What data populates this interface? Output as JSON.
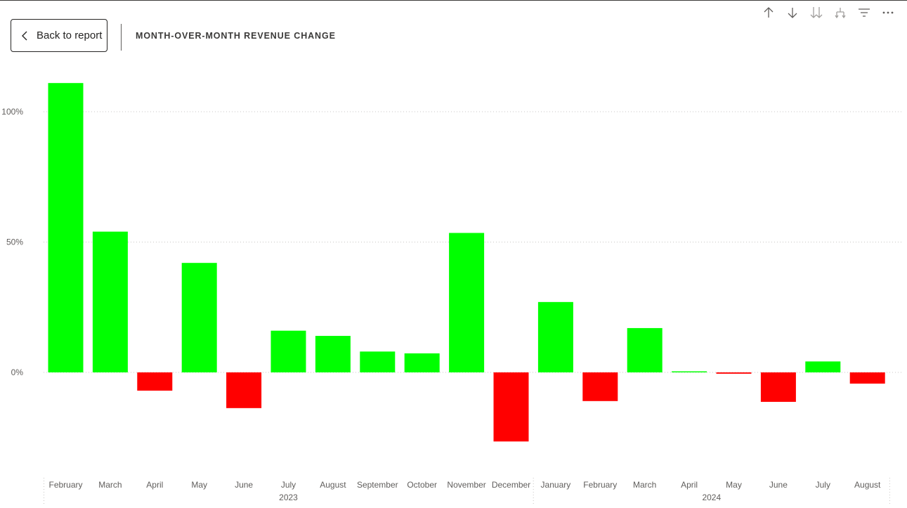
{
  "header": {
    "back_label": "Back to report",
    "title": "MONTH-OVER-MONTH REVENUE CHANGE"
  },
  "toolbar": {
    "icons": [
      "arrow-up-icon",
      "arrow-down-icon",
      "double-arrow-down-icon",
      "expand-hierarchy-icon",
      "filter-icon",
      "more-options-icon"
    ]
  },
  "colors": {
    "positive": "#00ff00",
    "negative": "#ff0000",
    "text": "#605e5c"
  },
  "chart_data": {
    "type": "bar",
    "title": "MONTH-OVER-MONTH REVENUE CHANGE",
    "xlabel": "",
    "ylabel": "",
    "ylim": [
      -35,
      115
    ],
    "yticks": [
      "0%",
      "50%",
      "100%"
    ],
    "ytick_values": [
      0,
      50,
      100
    ],
    "grid": true,
    "categories": [
      "February",
      "March",
      "April",
      "May",
      "June",
      "July",
      "August",
      "September",
      "October",
      "November",
      "December",
      "January",
      "February",
      "March",
      "April",
      "May",
      "June",
      "July",
      "August"
    ],
    "values": [
      111,
      54,
      -7,
      42,
      -13.7,
      16,
      14,
      8,
      7.3,
      53.5,
      -26.5,
      27,
      -11,
      17,
      0.4,
      -0.5,
      -11.3,
      4.2,
      -4.3
    ],
    "year_groups": [
      {
        "label": "2023",
        "start": 0,
        "end": 10
      },
      {
        "label": "2024",
        "start": 11,
        "end": 18
      }
    ]
  }
}
